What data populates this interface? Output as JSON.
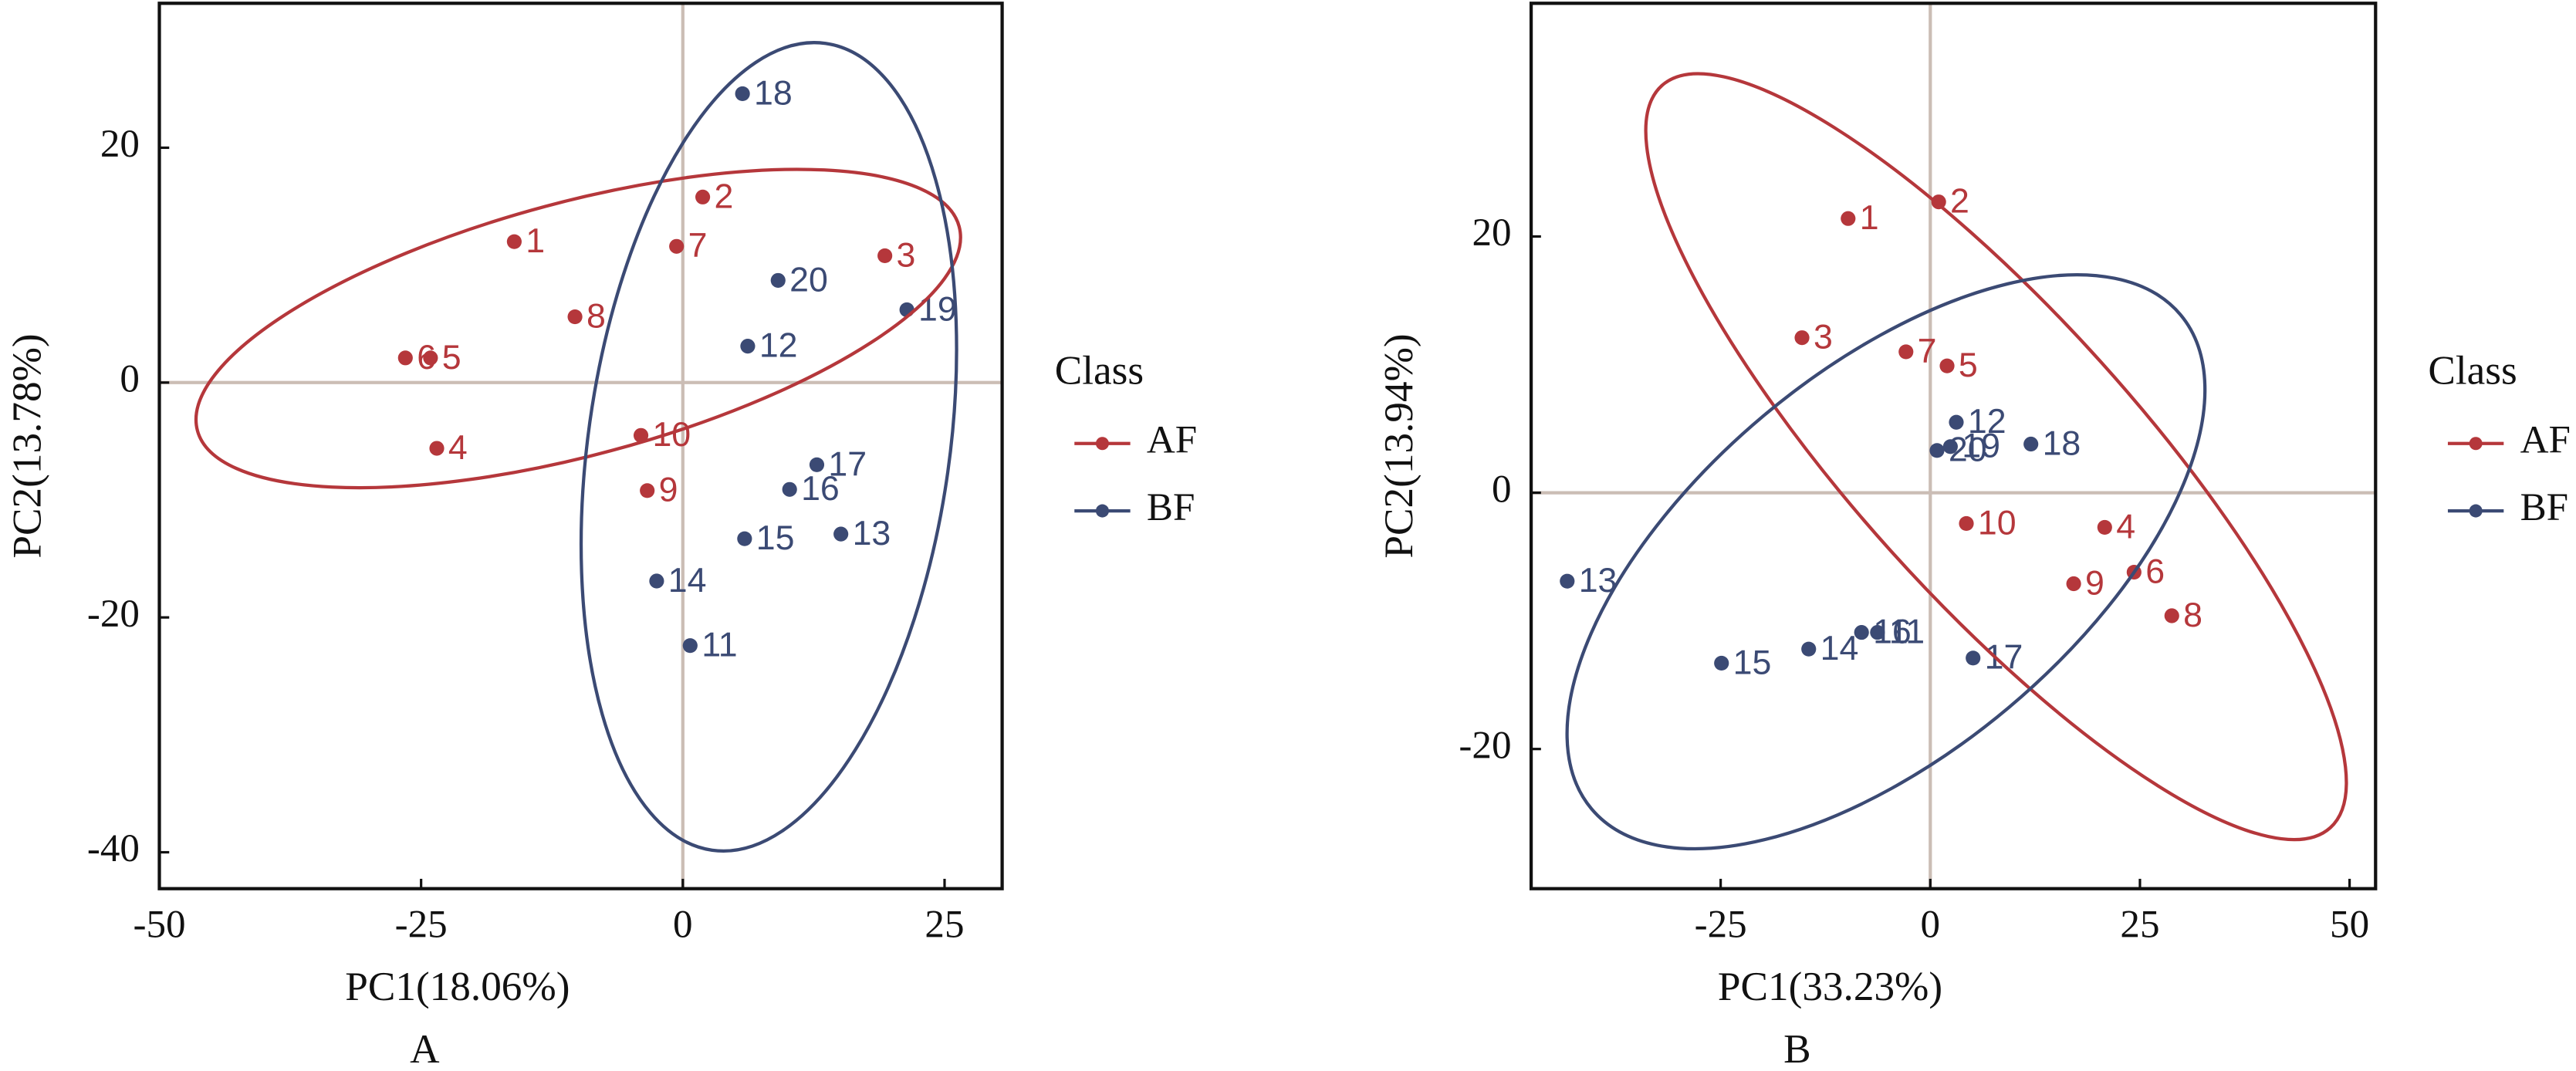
{
  "chart_data": [
    {
      "type": "scatter",
      "caption": "A",
      "x_label": "PC1(18.06%)",
      "y_label": "PC2(13.78%)",
      "xlim": [
        -50,
        30.5
      ],
      "ylim": [
        -43.1,
        32.3
      ],
      "xticks": [
        -50,
        -25,
        0,
        25
      ],
      "yticks": [
        -40,
        -20,
        0,
        20
      ],
      "legend_title": "Class",
      "series": [
        {
          "name": "AF",
          "color": "#b5373b",
          "labels": [
            "1",
            "2",
            "3",
            "4",
            "5",
            "6",
            "7",
            "8",
            "9",
            "10"
          ],
          "x": [
            -16.1,
            1.9,
            19.3,
            -23.5,
            -24.1,
            -26.5,
            -0.6,
            -10.3,
            -3.4,
            -4.0
          ],
          "values": [
            12.0,
            15.8,
            10.8,
            -5.6,
            2.1,
            2.1,
            11.6,
            5.6,
            -9.2,
            -4.5
          ]
        },
        {
          "name": "BF",
          "color": "#3b4a74",
          "labels": [
            "11",
            "12",
            "13",
            "14",
            "15",
            "16",
            "17",
            "18",
            "19",
            "20"
          ],
          "x": [
            0.7,
            6.2,
            15.1,
            -2.5,
            5.9,
            10.2,
            12.8,
            5.7,
            21.4,
            9.1
          ],
          "values": [
            -22.4,
            3.1,
            -12.9,
            -16.9,
            -13.3,
            -9.1,
            -7.0,
            24.6,
            6.2,
            8.7
          ]
        }
      ]
    },
    {
      "type": "scatter",
      "caption": "B",
      "x_label": "PC1(33.23%)",
      "y_label": "PC2(13.94%)",
      "xlim": [
        -47.6,
        53.1
      ],
      "ylim": [
        -30.9,
        38.2
      ],
      "xticks": [
        -25,
        0,
        25,
        50
      ],
      "yticks": [
        -20,
        0,
        20
      ],
      "legend_title": "Class",
      "series": [
        {
          "name": "AF",
          "color": "#b5373b",
          "labels": [
            "1",
            "2",
            "3",
            "4",
            "5",
            "6",
            "7",
            "8",
            "9",
            "10"
          ],
          "x": [
            -9.8,
            1.0,
            -15.3,
            20.8,
            2.0,
            24.3,
            -2.9,
            28.8,
            17.1,
            4.3
          ],
          "values": [
            21.4,
            22.7,
            12.1,
            -2.7,
            9.9,
            -6.2,
            11.0,
            -9.6,
            -7.1,
            -2.4
          ]
        },
        {
          "name": "BF",
          "color": "#3b4a74",
          "labels": [
            "11",
            "12",
            "13",
            "14",
            "15",
            "16",
            "17",
            "18",
            "19",
            "20"
          ],
          "x": [
            -6.3,
            3.1,
            -43.3,
            -14.5,
            -24.9,
            -8.2,
            5.1,
            12.0,
            2.4,
            0.8
          ],
          "values": [
            -10.9,
            5.5,
            -6.9,
            -12.2,
            -13.3,
            -10.9,
            -12.9,
            3.8,
            3.6,
            3.3
          ]
        }
      ]
    }
  ]
}
